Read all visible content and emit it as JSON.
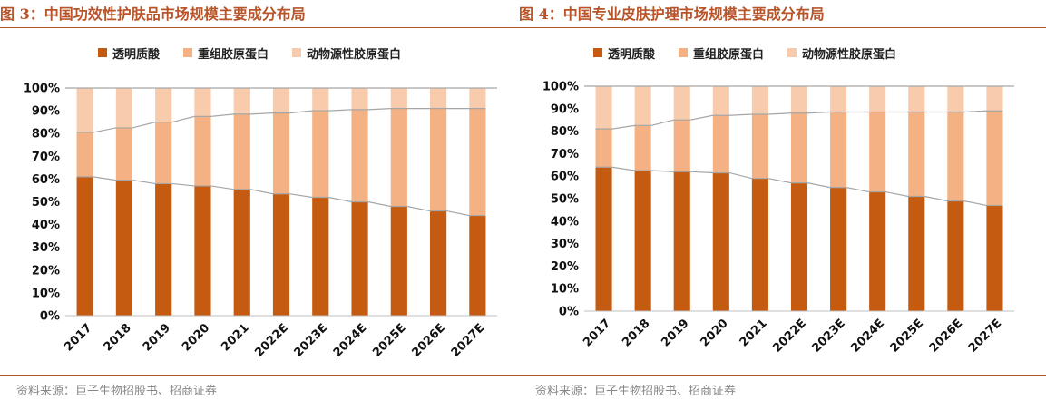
{
  "colors": {
    "accent": "#b8542a",
    "series1": "#c55a11",
    "series2": "#f4b183",
    "series3": "#f8cbad",
    "trend": "#a6a6a6"
  },
  "panels": [
    {
      "title": "图 3：中国功效性护肤品市场规模主要成分布局",
      "source": "资料来源：巨子生物招股书、招商证券"
    },
    {
      "title": "图 4：中国专业皮肤护理市场规模主要成分布局",
      "source": "资料来源：巨子生物招股书、招商证券"
    }
  ],
  "chart_data": [
    {
      "type": "bar",
      "stacked": true,
      "title": "",
      "ylim": [
        0,
        100
      ],
      "yticks": [
        "0%",
        "10%",
        "20%",
        "30%",
        "40%",
        "50%",
        "60%",
        "70%",
        "80%",
        "90%",
        "100%"
      ],
      "categories": [
        "2017",
        "2018",
        "2019",
        "2020",
        "2021",
        "2022E",
        "2023E",
        "2024E",
        "2025E",
        "2026E",
        "2027E"
      ],
      "legend_position": "top",
      "series": [
        {
          "name": "透明质酸",
          "values": [
            61,
            59.5,
            58,
            57,
            55.5,
            53.5,
            52,
            50,
            48,
            46,
            44
          ]
        },
        {
          "name": "重组胶原蛋白",
          "values": [
            19.5,
            23,
            27,
            30.5,
            33,
            35.5,
            38,
            40.5,
            43,
            45,
            47
          ]
        },
        {
          "name": "动物源性胶原蛋白",
          "values": [
            19.5,
            17.5,
            15,
            12.5,
            11.5,
            11,
            10,
            9.5,
            9,
            9,
            9
          ]
        }
      ]
    },
    {
      "type": "bar",
      "stacked": true,
      "title": "",
      "ylim": [
        0,
        100
      ],
      "yticks": [
        "0%",
        "10%",
        "20%",
        "30%",
        "40%",
        "50%",
        "60%",
        "70%",
        "80%",
        "90%",
        "100%"
      ],
      "categories": [
        "2017",
        "2018",
        "2019",
        "2020",
        "2021",
        "2022E",
        "2023E",
        "2024E",
        "2025E",
        "2026E",
        "2027E"
      ],
      "legend_position": "top",
      "series": [
        {
          "name": "透明质酸",
          "values": [
            64,
            62.5,
            62,
            61.5,
            59,
            57,
            55,
            53,
            51,
            49,
            47
          ]
        },
        {
          "name": "重组胶原蛋白",
          "values": [
            17,
            20,
            23,
            25.5,
            28.5,
            31,
            33.5,
            35.5,
            37.5,
            39.5,
            42
          ]
        },
        {
          "name": "动物源性胶原蛋白",
          "values": [
            19,
            17.5,
            15,
            13,
            12.5,
            12,
            11.5,
            11.5,
            11.5,
            11.5,
            11
          ]
        }
      ]
    }
  ]
}
